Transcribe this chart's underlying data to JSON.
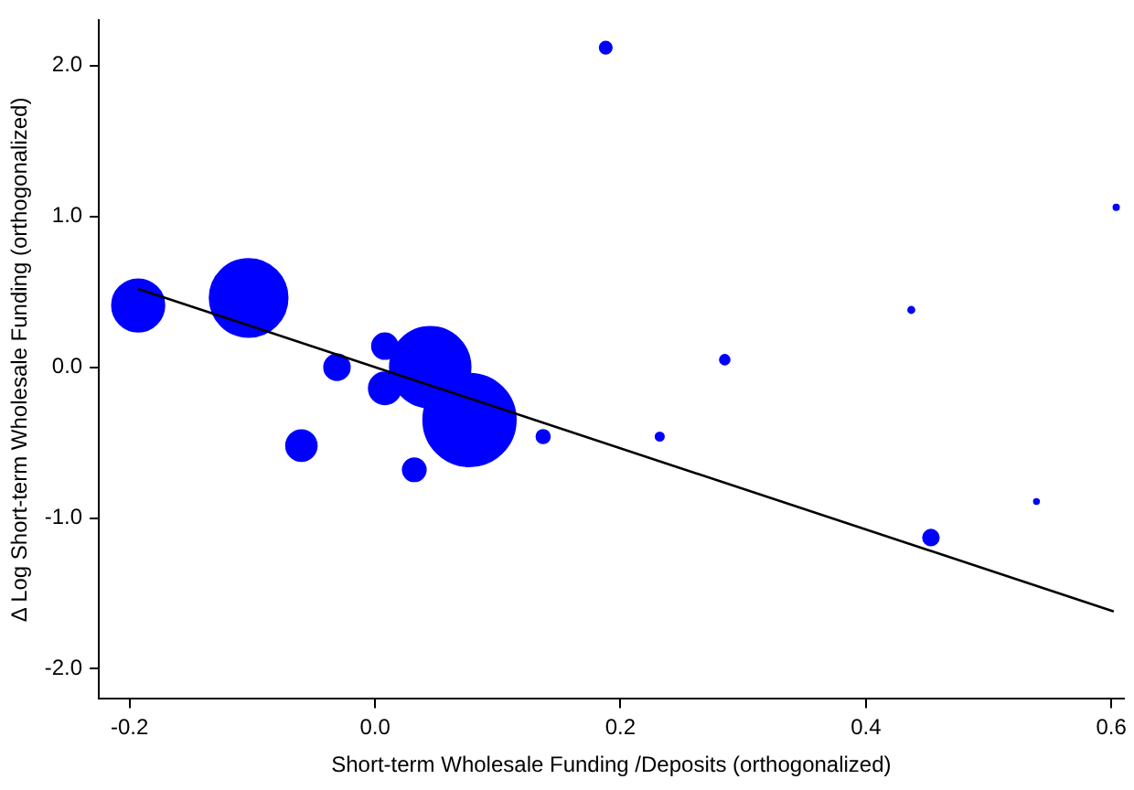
{
  "chart_data": {
    "type": "bubble",
    "xlabel": "Short-term Wholesale Funding /Deposits (orthogonalized)",
    "ylabel": "Δ Log Short-term Wholesale Funding (orthogonalized)",
    "xlim": [
      -0.225,
      0.61
    ],
    "ylim": [
      -2.2,
      2.3
    ],
    "xticks": [
      {
        "value": -0.2,
        "label": "-0.2"
      },
      {
        "value": 0,
        "label": "0.0"
      },
      {
        "value": 0.2,
        "label": "0.2"
      },
      {
        "value": 0.4,
        "label": "0.4"
      },
      {
        "value": 0.6,
        "label": "0.6"
      }
    ],
    "yticks": [
      {
        "value": -2,
        "label": "-2.0"
      },
      {
        "value": -1,
        "label": "-1.0"
      },
      {
        "value": 0,
        "label": "0.0"
      },
      {
        "value": 1,
        "label": "1.0"
      },
      {
        "value": 2,
        "label": "2.0"
      }
    ],
    "grid": false,
    "legend": false,
    "series": [
      {
        "color": "#0000ff",
        "marker": "circle",
        "x": [
          -0.193,
          -0.103,
          0.008,
          -0.031,
          0.045,
          0.008,
          0.077,
          0.137,
          -0.06,
          0.032,
          0.188,
          0.604,
          0.437,
          0.285,
          0.232,
          0.539,
          0.453
        ],
        "values": [
          0.41,
          0.46,
          0.14,
          0.0,
          0.0,
          -0.14,
          -0.35,
          -0.46,
          -0.52,
          -0.68,
          2.12,
          1.06,
          0.38,
          0.05,
          -0.46,
          -0.89,
          -1.13
        ],
        "sizes": [
          0.32,
          0.71,
          0.077,
          0.077,
          0.76,
          0.12,
          1,
          0.021,
          0.11,
          0.062,
          0.017,
          0.0035,
          0.0045,
          0.011,
          0.008,
          0.003,
          0.029
        ]
      },
      {
        "type": "line",
        "color": "#000000",
        "marker": "none",
        "x": [
          -0.193,
          0.602
        ],
        "values": [
          0.52,
          -1.62
        ]
      }
    ]
  }
}
